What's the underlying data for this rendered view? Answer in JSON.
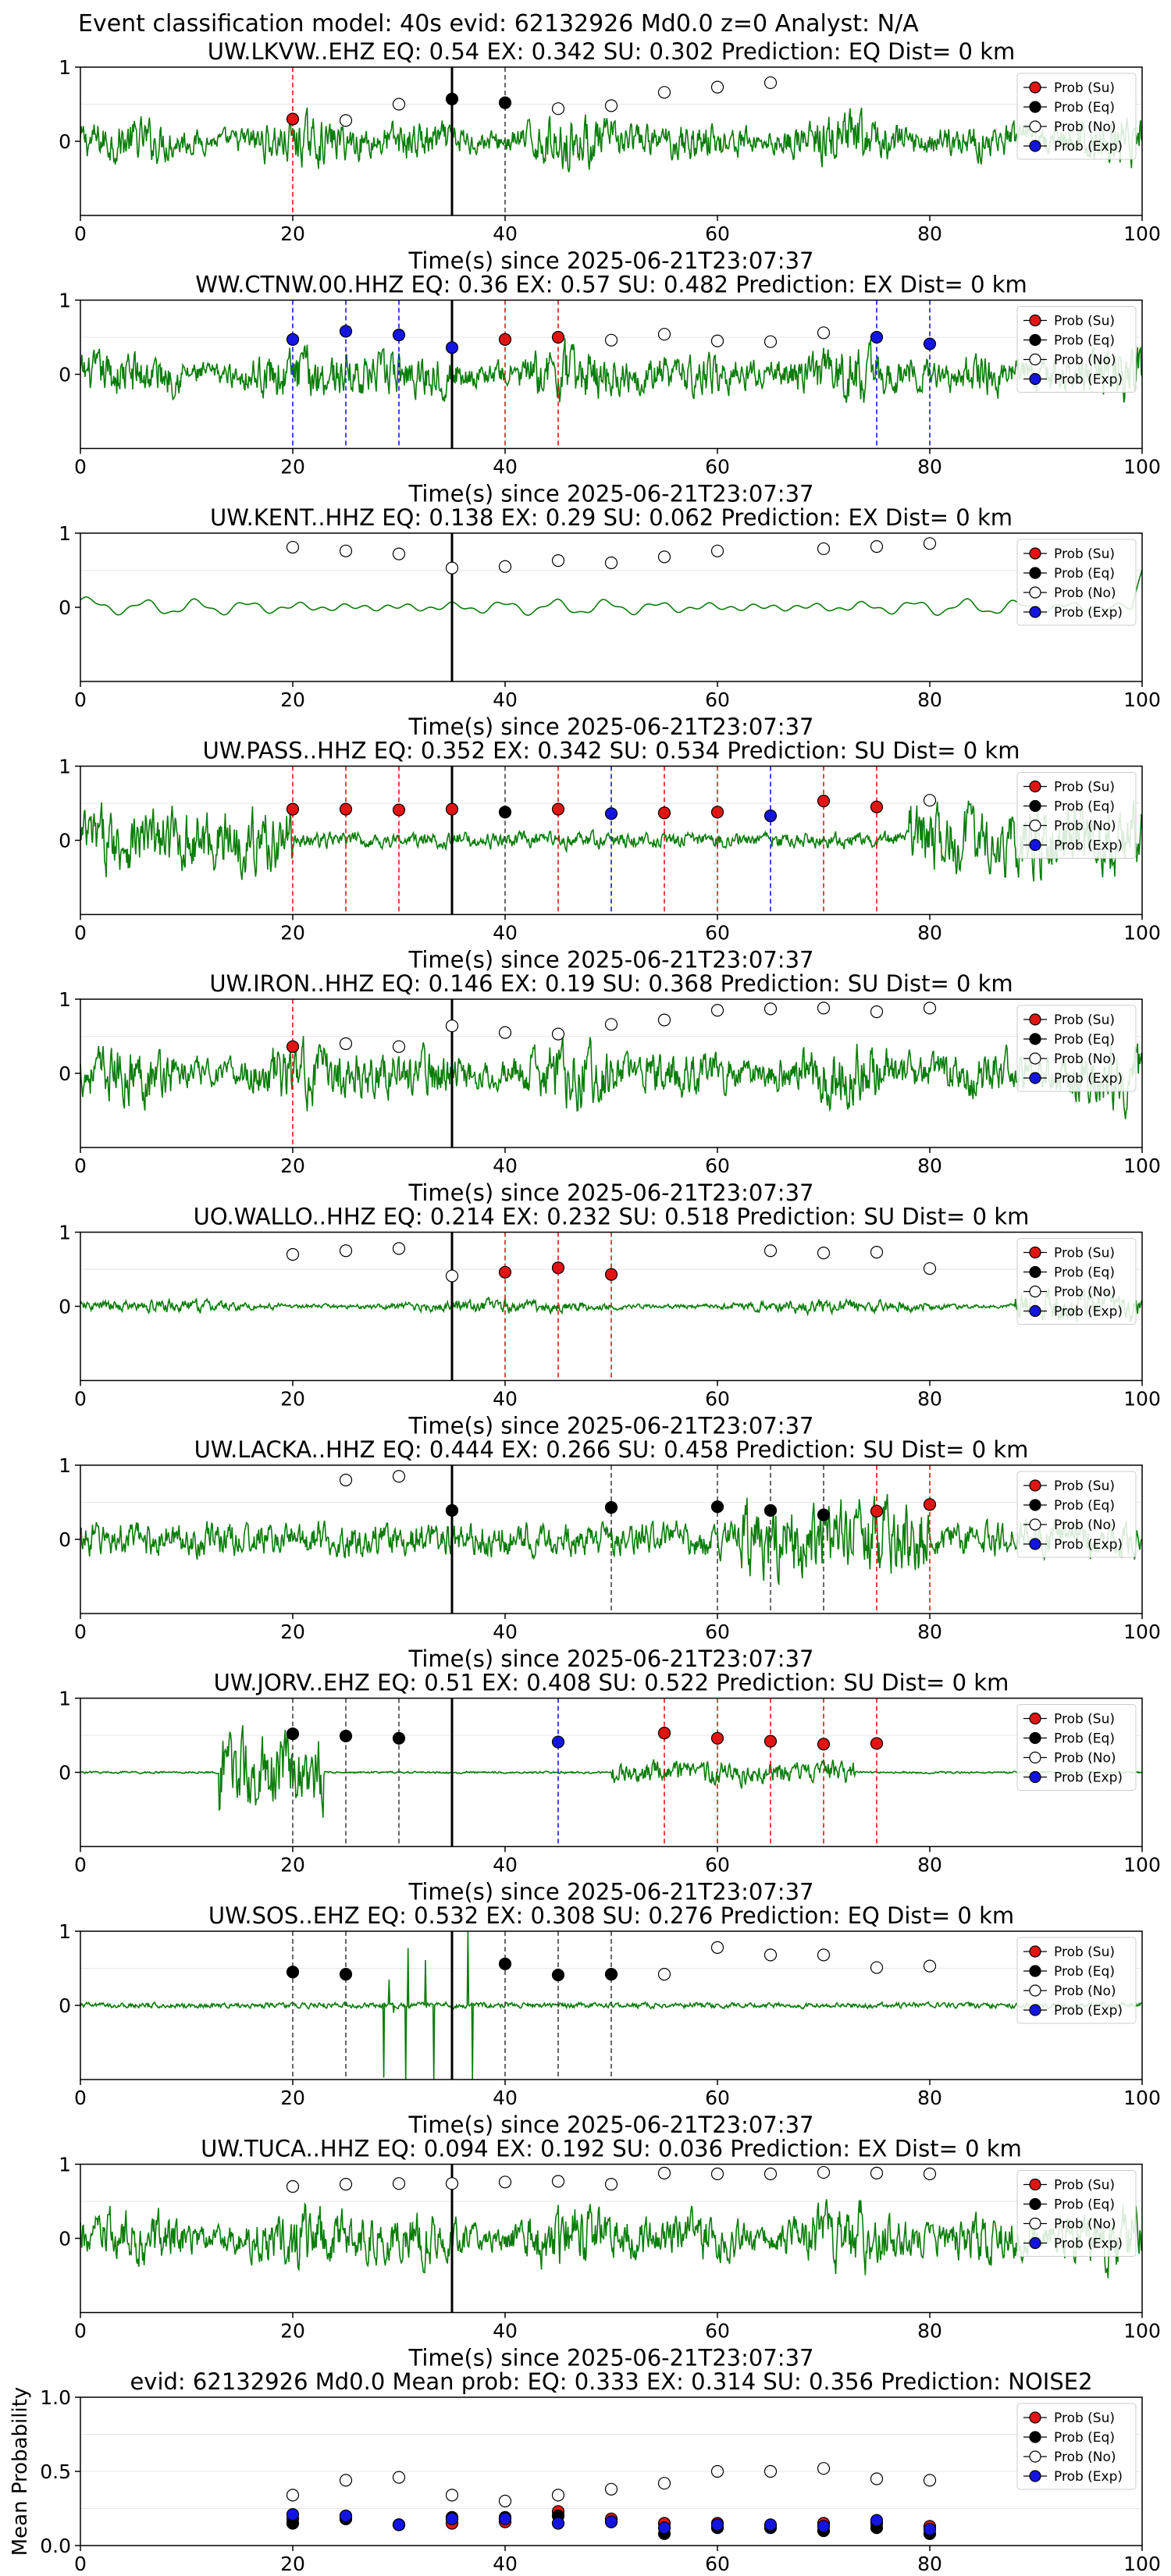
{
  "figure": {
    "suptitle": "Event classification model: 40s evid: 62132926 Md0.0 z=0 Analyst: N/A"
  },
  "legend": [
    "Prob (Su)",
    "Prob (Eq)",
    "Prob (No)",
    "Prob (Exp)"
  ],
  "colors": {
    "su": "#e11414",
    "eq": "#000000",
    "no": "#ffffff",
    "exp": "#1414e1",
    "waveform": "#0a7d0a",
    "pick": "#000000"
  },
  "chart_data": [
    {
      "type": "line",
      "title": "UW.LKVW..EHZ   EQ: 0.54   EX: 0.342   SU: 0.302   Prediction: EQ    Dist= 0 km",
      "xlabel": "Time(s) since 2025-06-21T23:07:37",
      "xlim": [
        0,
        100
      ],
      "ylim": [
        -1,
        1
      ],
      "xticks": [
        "0",
        "20",
        "40",
        "60",
        "80",
        "100"
      ],
      "yticks": [
        "1",
        "0"
      ],
      "waveform_style": "noisy",
      "waveform_amp": 0.55,
      "pick_time": 35,
      "windows": [
        20,
        25,
        30,
        35,
        40,
        45,
        50,
        55,
        60,
        65
      ],
      "classes": [
        "su",
        "no",
        "no",
        "eq",
        "eq",
        "no",
        "no",
        "no",
        "no",
        "no"
      ],
      "probs": [
        0.3,
        0.28,
        0.5,
        0.57,
        0.52,
        0.44,
        0.48,
        0.66,
        0.73,
        0.79
      ]
    },
    {
      "type": "line",
      "title": "WW.CTNW.00.HHZ   EQ: 0.36   EX: 0.57   SU: 0.482   Prediction: EX    Dist= 0 km",
      "xlabel": "Time(s) since 2025-06-21T23:07:37",
      "xlim": [
        0,
        100
      ],
      "ylim": [
        -1,
        1
      ],
      "xticks": [
        "0",
        "20",
        "40",
        "60",
        "80",
        "100"
      ],
      "yticks": [
        "1",
        "0"
      ],
      "waveform_style": "noisy",
      "waveform_amp": 0.6,
      "pick_time": 35,
      "windows": [
        20,
        25,
        30,
        35,
        40,
        45,
        50,
        55,
        60,
        65,
        70,
        75,
        80
      ],
      "classes": [
        "exp",
        "exp",
        "exp",
        "exp",
        "su",
        "su",
        "no",
        "no",
        "no",
        "no",
        "no",
        "exp",
        "exp"
      ],
      "probs": [
        0.47,
        0.58,
        0.53,
        0.36,
        0.47,
        0.5,
        0.46,
        0.54,
        0.45,
        0.44,
        0.56,
        0.5,
        0.41
      ]
    },
    {
      "type": "line",
      "title": "UW.KENT..HHZ   EQ: 0.138   EX: 0.29   SU: 0.062   Prediction: EX    Dist= 0 km",
      "xlabel": "Time(s) since 2025-06-21T23:07:37",
      "xlim": [
        0,
        100
      ],
      "ylim": [
        -1,
        1
      ],
      "xticks": [
        "0",
        "20",
        "40",
        "60",
        "80",
        "100"
      ],
      "yticks": [
        "1",
        "0"
      ],
      "waveform_style": "smooth",
      "waveform_amp": 0.25,
      "pick_time": 35,
      "windows": [
        20,
        25,
        30,
        35,
        40,
        45,
        50,
        55,
        60,
        70,
        75,
        80
      ],
      "classes": [
        "no",
        "no",
        "no",
        "no",
        "no",
        "no",
        "no",
        "no",
        "no",
        "no",
        "no",
        "no"
      ],
      "probs": [
        0.81,
        0.76,
        0.72,
        0.53,
        0.55,
        0.63,
        0.6,
        0.68,
        0.76,
        0.79,
        0.82,
        0.86
      ]
    },
    {
      "type": "line",
      "title": "UW.PASS..HHZ   EQ: 0.352   EX: 0.342   SU: 0.534   Prediction: SU    Dist= 0 km",
      "xlabel": "Time(s) since 2025-06-21T23:07:37",
      "xlim": [
        0,
        100
      ],
      "ylim": [
        -1,
        1
      ],
      "xticks": [
        "0",
        "20",
        "40",
        "60",
        "80",
        "100"
      ],
      "yticks": [
        "1",
        "0"
      ],
      "waveform_style": "burst-edges",
      "waveform_amp": 0.7,
      "pick_time": 35,
      "windows": [
        20,
        25,
        30,
        35,
        40,
        45,
        50,
        55,
        60,
        65,
        70,
        75,
        80
      ],
      "classes": [
        "su",
        "su",
        "su",
        "su",
        "eq",
        "su",
        "exp",
        "su",
        "su",
        "exp",
        "su",
        "su",
        "no"
      ],
      "probs": [
        0.42,
        0.42,
        0.41,
        0.42,
        0.38,
        0.42,
        0.36,
        0.37,
        0.38,
        0.33,
        0.53,
        0.45,
        0.54
      ]
    },
    {
      "type": "line",
      "title": "UW.IRON..HHZ   EQ: 0.146   EX: 0.19   SU: 0.368   Prediction: SU    Dist= 0 km",
      "xlabel": "Time(s) since 2025-06-21T23:07:37",
      "xlim": [
        0,
        100
      ],
      "ylim": [
        -1,
        1
      ],
      "xticks": [
        "0",
        "20",
        "40",
        "60",
        "80",
        "100"
      ],
      "yticks": [
        "1",
        "0"
      ],
      "waveform_style": "noisy",
      "waveform_amp": 0.7,
      "pick_time": 35,
      "windows": [
        20,
        25,
        30,
        35,
        40,
        45,
        50,
        55,
        60,
        65,
        70,
        75,
        80
      ],
      "classes": [
        "su",
        "no",
        "no",
        "no",
        "no",
        "no",
        "no",
        "no",
        "no",
        "no",
        "no",
        "no",
        "no"
      ],
      "probs": [
        0.36,
        0.4,
        0.36,
        0.64,
        0.55,
        0.53,
        0.66,
        0.72,
        0.85,
        0.87,
        0.88,
        0.83,
        0.88
      ]
    },
    {
      "type": "line",
      "title": "UO.WALLO..HHZ   EQ: 0.214   EX: 0.232   SU: 0.518   Prediction: SU    Dist= 0 km",
      "xlabel": "Time(s) since 2025-06-21T23:07:37",
      "xlim": [
        0,
        100
      ],
      "ylim": [
        -1,
        1
      ],
      "xticks": [
        "0",
        "20",
        "40",
        "60",
        "80",
        "100"
      ],
      "yticks": [
        "1",
        "0"
      ],
      "waveform_style": "low",
      "waveform_amp": 0.18,
      "pick_time": 35,
      "windows": [
        20,
        25,
        30,
        35,
        40,
        45,
        50,
        65,
        70,
        75,
        80
      ],
      "classes": [
        "no",
        "no",
        "no",
        "no",
        "su",
        "su",
        "su",
        "no",
        "no",
        "no",
        "no"
      ],
      "probs": [
        0.7,
        0.75,
        0.78,
        0.41,
        0.46,
        0.52,
        0.43,
        0.75,
        0.72,
        0.73,
        0.51
      ]
    },
    {
      "type": "line",
      "title": "UW.LACKA..HHZ   EQ: 0.444   EX: 0.266   SU: 0.458   Prediction: SU    Dist= 0 km",
      "xlabel": "Time(s) since 2025-06-21T23:07:37",
      "xlim": [
        0,
        100
      ],
      "ylim": [
        -1,
        1
      ],
      "xticks": [
        "0",
        "20",
        "40",
        "60",
        "80",
        "100"
      ],
      "yticks": [
        "1",
        "0"
      ],
      "waveform_style": "late-burst",
      "waveform_amp": 0.5,
      "pick_time": 35,
      "windows": [
        25,
        30,
        35,
        50,
        60,
        65,
        70,
        75,
        80
      ],
      "classes": [
        "no",
        "no",
        "eq",
        "eq",
        "eq",
        "eq",
        "eq",
        "su",
        "su"
      ],
      "probs": [
        0.8,
        0.85,
        0.39,
        0.43,
        0.44,
        0.39,
        0.33,
        0.38,
        0.47
      ]
    },
    {
      "type": "line",
      "title": "UW.JORV..EHZ   EQ: 0.51   EX: 0.408   SU: 0.522   Prediction: SU    Dist= 0 km",
      "xlabel": "Time(s) since 2025-06-21T23:07:37",
      "xlim": [
        0,
        100
      ],
      "ylim": [
        -1,
        1
      ],
      "xticks": [
        "0",
        "20",
        "40",
        "60",
        "80",
        "100"
      ],
      "yticks": [
        "1",
        "0"
      ],
      "waveform_style": "two-events",
      "waveform_amp": 0.8,
      "pick_time": 35,
      "windows": [
        20,
        25,
        30,
        45,
        55,
        60,
        65,
        70,
        75
      ],
      "classes": [
        "eq",
        "eq",
        "eq",
        "exp",
        "su",
        "su",
        "su",
        "su",
        "su"
      ],
      "probs": [
        0.52,
        0.49,
        0.46,
        0.41,
        0.53,
        0.46,
        0.42,
        0.38,
        0.39
      ]
    },
    {
      "type": "line",
      "title": "UW.SOS..EHZ   EQ: 0.532   EX: 0.308   SU: 0.276   Prediction: EQ    Dist= 0 km",
      "xlabel": "Time(s) since 2025-06-21T23:07:37",
      "xlim": [
        0,
        100
      ],
      "ylim": [
        -1,
        1
      ],
      "xticks": [
        "0",
        "20",
        "40",
        "60",
        "80",
        "100"
      ],
      "yticks": [
        "1",
        "0"
      ],
      "waveform_style": "spikes",
      "waveform_amp": 0.5,
      "pick_time": 35,
      "windows": [
        20,
        25,
        40,
        45,
        50,
        55,
        60,
        65,
        70,
        75,
        80
      ],
      "classes": [
        "eq",
        "eq",
        "eq",
        "eq",
        "eq",
        "no",
        "no",
        "no",
        "no",
        "no",
        "no"
      ],
      "probs": [
        0.45,
        0.42,
        0.56,
        0.41,
        0.42,
        0.42,
        0.78,
        0.68,
        0.68,
        0.51,
        0.53
      ]
    },
    {
      "type": "line",
      "title": "UW.TUCA..HHZ   EQ: 0.094   EX: 0.192   SU: 0.036   Prediction: EX    Dist= 0 km",
      "xlabel": "Time(s) since 2025-06-21T23:07:37",
      "xlim": [
        0,
        100
      ],
      "ylim": [
        -1,
        1
      ],
      "xticks": [
        "0",
        "20",
        "40",
        "60",
        "80",
        "100"
      ],
      "yticks": [
        "1",
        "0"
      ],
      "waveform_style": "noisy",
      "waveform_amp": 0.7,
      "pick_time": 35,
      "windows": [
        20,
        25,
        30,
        35,
        40,
        45,
        50,
        55,
        60,
        65,
        70,
        75,
        80
      ],
      "classes": [
        "no",
        "no",
        "no",
        "no",
        "no",
        "no",
        "no",
        "no",
        "no",
        "no",
        "no",
        "no",
        "no"
      ],
      "probs": [
        0.7,
        0.73,
        0.74,
        0.74,
        0.76,
        0.77,
        0.73,
        0.88,
        0.87,
        0.87,
        0.89,
        0.88,
        0.87
      ]
    },
    {
      "type": "scatter",
      "title": "evid: 62132926  Md0.0   Mean prob:   EQ: 0.333  EX: 0.314  SU: 0.356   Prediction: NOISE2",
      "ylabel": "Mean Probability",
      "xlim": [
        0,
        100
      ],
      "ylim": [
        0,
        1
      ],
      "xticks": [
        "0",
        "20",
        "40",
        "60",
        "80",
        "100"
      ],
      "yticks": [
        "1.0",
        "0.5",
        "0.0"
      ],
      "x": [
        20,
        25,
        30,
        35,
        40,
        45,
        50,
        55,
        60,
        65,
        70,
        75,
        80
      ],
      "series": [
        {
          "name": "Prob (Su)",
          "key": "su",
          "values": [
            0.18,
            0.18,
            0.14,
            0.15,
            0.16,
            0.23,
            0.18,
            0.15,
            0.15,
            0.13,
            0.15,
            0.15,
            0.13
          ]
        },
        {
          "name": "Prob (Eq)",
          "key": "eq",
          "values": [
            0.15,
            0.18,
            0.14,
            0.19,
            0.19,
            0.2,
            0.16,
            0.08,
            0.12,
            0.12,
            0.1,
            0.12,
            0.08
          ]
        },
        {
          "name": "Prob (No)",
          "key": "no",
          "values": [
            0.34,
            0.44,
            0.46,
            0.34,
            0.3,
            0.34,
            0.38,
            0.42,
            0.5,
            0.5,
            0.52,
            0.45,
            0.44
          ]
        },
        {
          "name": "Prob (Exp)",
          "key": "exp",
          "values": [
            0.21,
            0.2,
            0.14,
            0.18,
            0.18,
            0.15,
            0.16,
            0.12,
            0.14,
            0.14,
            0.13,
            0.17,
            0.11
          ]
        }
      ]
    }
  ]
}
